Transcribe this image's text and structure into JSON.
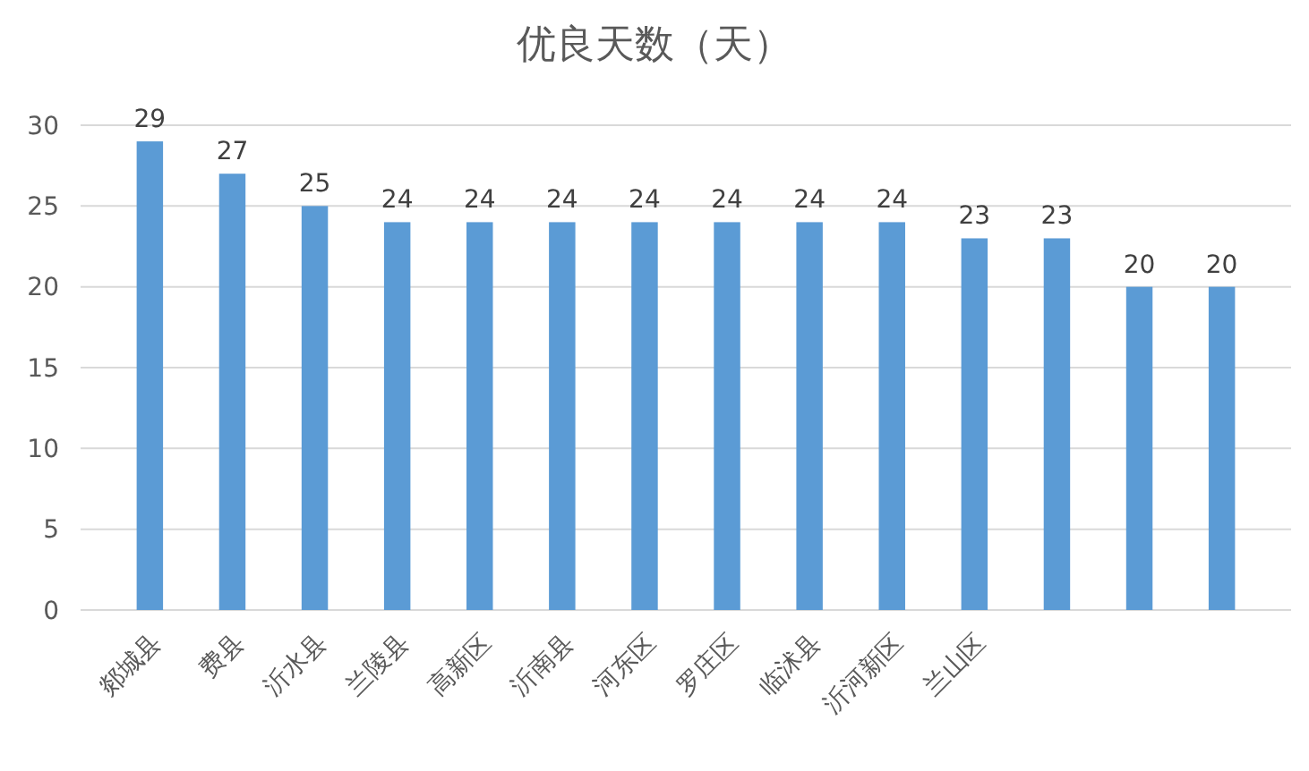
{
  "chart_data": {
    "type": "bar",
    "title": "优良天数（天）",
    "categories": [
      "郯城县",
      "费县",
      "沂水县",
      "兰陵县",
      "高新区",
      "沂南县",
      "河东区",
      "罗庄区",
      "临沭县",
      "沂河新区",
      "兰山区",
      null,
      null,
      null
    ],
    "values": [
      29,
      27,
      25,
      24,
      24,
      24,
      24,
      24,
      24,
      24,
      23,
      23,
      20,
      20
    ],
    "color": "#5b9bd5",
    "ylim": [
      0,
      30
    ],
    "yticks": [
      0,
      5,
      10,
      15,
      20,
      25,
      30
    ],
    "grid": "y",
    "data_labels": true
  }
}
